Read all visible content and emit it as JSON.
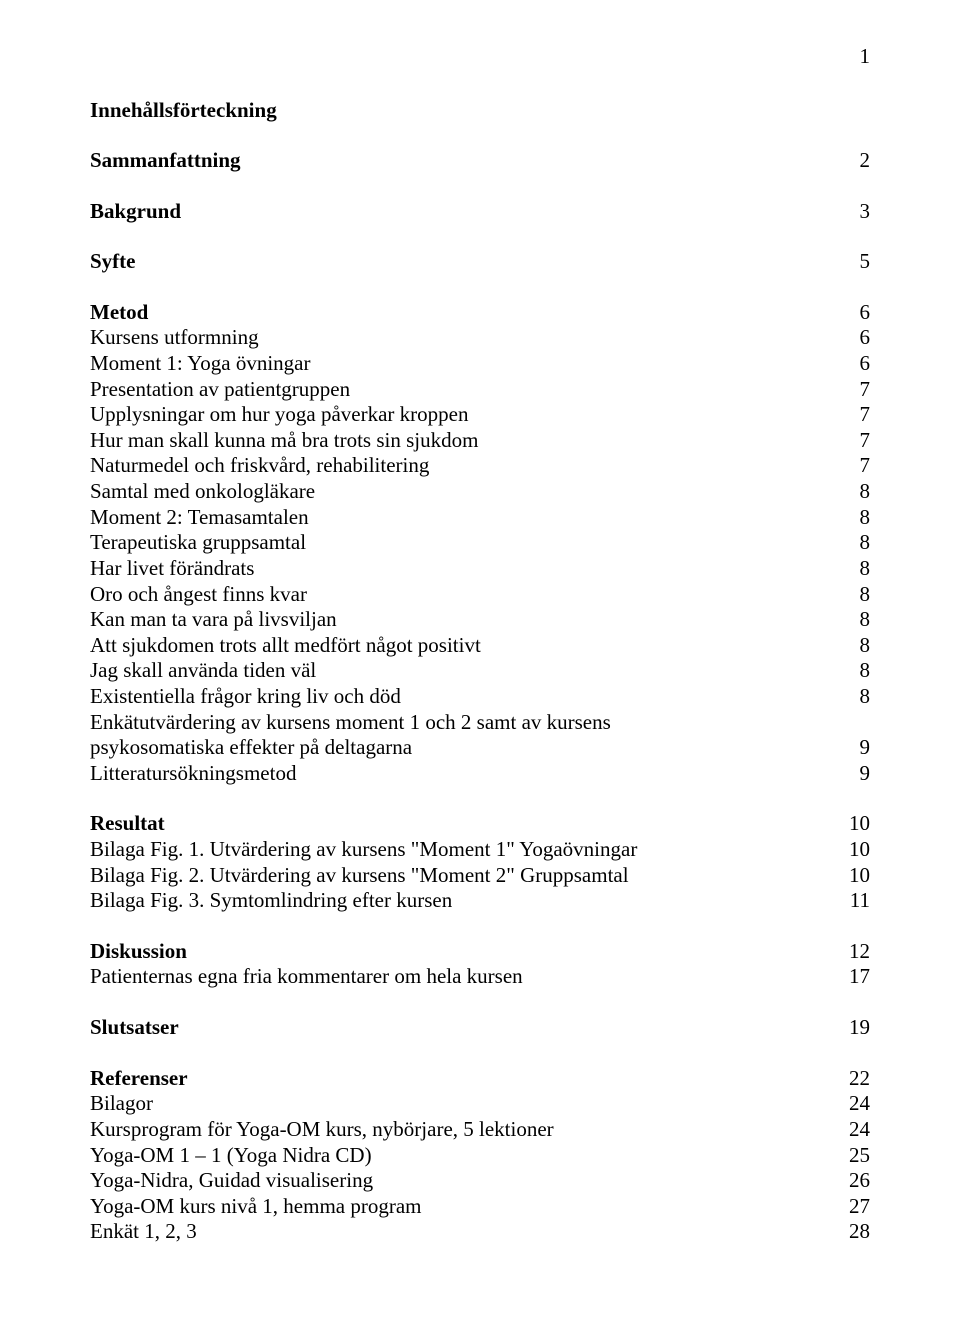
{
  "page_number": "1",
  "title": "Innehållsförteckning",
  "font": {
    "family": "Times New Roman",
    "body_size_pt": 16,
    "color": "#000000",
    "background": "#ffffff"
  },
  "sections": [
    {
      "lines": [
        {
          "label": "Sammanfattning",
          "page": "2",
          "bold": true
        }
      ]
    },
    {
      "lines": [
        {
          "label": "Bakgrund",
          "page": "3",
          "bold": true
        }
      ]
    },
    {
      "lines": [
        {
          "label": "Syfte",
          "page": "5",
          "bold": true
        }
      ]
    },
    {
      "lines": [
        {
          "label": "Metod",
          "page": "6",
          "bold": true
        },
        {
          "label": "Kursens utformning",
          "page": "6",
          "bold": false
        },
        {
          "label": "Moment 1: Yoga övningar",
          "page": "6",
          "bold": false
        },
        {
          "label": "Presentation av patientgruppen",
          "page": "7",
          "bold": false
        },
        {
          "label": "Upplysningar om hur yoga påverkar kroppen",
          "page": "7",
          "bold": false
        },
        {
          "label": "Hur man skall kunna må bra trots sin sjukdom",
          "page": "7",
          "bold": false
        },
        {
          "label": "Naturmedel och friskvård, rehabilitering",
          "page": "7",
          "bold": false
        },
        {
          "label": "Samtal med onkologläkare",
          "page": "8",
          "bold": false
        },
        {
          "label": "Moment 2: Temasamtalen",
          "page": "8",
          "bold": false
        },
        {
          "label": "Terapeutiska gruppsamtal",
          "page": "8",
          "bold": false
        },
        {
          "label": "Har livet förändrats",
          "page": "8",
          "bold": false
        },
        {
          "label": "Oro och ångest finns kvar",
          "page": "8",
          "bold": false
        },
        {
          "label": "Kan man ta vara på livsviljan",
          "page": "8",
          "bold": false
        },
        {
          "label": "Att sjukdomen trots allt medfört något positivt",
          "page": "8",
          "bold": false
        },
        {
          "label": "Jag skall använda tiden väl",
          "page": "8",
          "bold": false
        },
        {
          "label": "Existentiella frågor kring liv och död",
          "page": "8",
          "bold": false
        },
        {
          "label": "Enkätutvärdering av kursens moment 1 och 2 samt av kursens",
          "page": "",
          "bold": false
        },
        {
          "label": "psykosomatiska effekter på deltagarna",
          "page": "9",
          "bold": false
        },
        {
          "label": "Litteratursökningsmetod",
          "page": "9",
          "bold": false
        }
      ]
    },
    {
      "lines": [
        {
          "label": "Resultat",
          "page": "10",
          "bold": true
        },
        {
          "label": "Bilaga Fig. 1. Utvärdering av kursens \"Moment 1\" Yogaövningar",
          "page": "10",
          "bold": false
        },
        {
          "label": "Bilaga Fig. 2. Utvärdering av kursens \"Moment 2\" Gruppsamtal",
          "page": "10",
          "bold": false
        },
        {
          "label": "Bilaga Fig. 3. Symtomlindring efter kursen",
          "page": "11",
          "bold": false
        }
      ]
    },
    {
      "lines": [
        {
          "label": "Diskussion",
          "page": "12",
          "bold": true
        },
        {
          "label": "Patienternas egna fria kommentarer om hela kursen",
          "page": "17",
          "bold": false
        }
      ]
    },
    {
      "lines": [
        {
          "label": "Slutsatser",
          "page": "19",
          "bold": true
        }
      ]
    },
    {
      "lines": [
        {
          "label": "Referenser",
          "page": "22",
          "bold": true
        },
        {
          "label": "Bilagor",
          "page": "24",
          "bold": false
        },
        {
          "label": "Kursprogram för Yoga-OM kurs, nybörjare, 5 lektioner",
          "page": "24",
          "bold": false
        },
        {
          "label": "Yoga-OM 1 – 1 (Yoga Nidra CD)",
          "page": "25",
          "bold": false
        },
        {
          "label": "Yoga-Nidra, Guidad visualisering",
          "page": "26",
          "bold": false
        },
        {
          "label": "Yoga-OM kurs nivå 1, hemma program",
          "page": "27",
          "bold": false
        },
        {
          "label": "Enkät 1, 2, 3",
          "page": "28",
          "bold": false
        }
      ]
    }
  ]
}
